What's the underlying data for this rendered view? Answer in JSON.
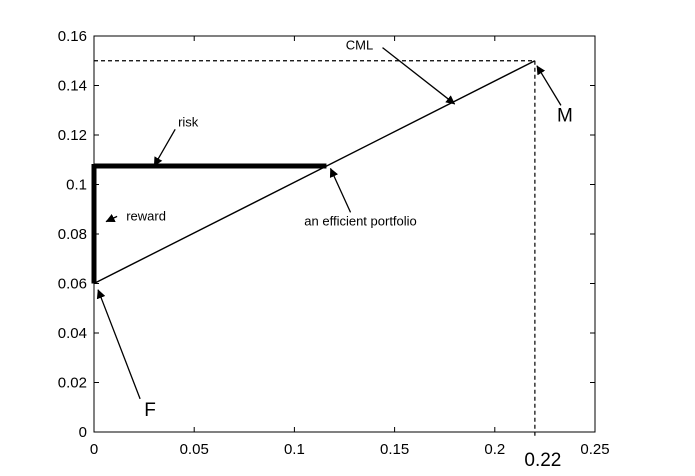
{
  "chart_data": {
    "type": "line",
    "title": "",
    "xlabel": "",
    "ylabel": "",
    "xlim": [
      0,
      0.25
    ],
    "ylim": [
      0,
      0.16
    ],
    "grid": false,
    "x_ticks": [
      {
        "value": 0,
        "label": "0"
      },
      {
        "value": 0.05,
        "label": "0.05"
      },
      {
        "value": 0.1,
        "label": "0.1"
      },
      {
        "value": 0.15,
        "label": "0.15"
      },
      {
        "value": 0.2,
        "label": "0.2"
      },
      {
        "value": 0.25,
        "label": "0.25"
      }
    ],
    "y_ticks": [
      {
        "value": 0,
        "label": "0"
      },
      {
        "value": 0.02,
        "label": "0.02"
      },
      {
        "value": 0.04,
        "label": "0.04"
      },
      {
        "value": 0.06,
        "label": "0.06"
      },
      {
        "value": 0.08,
        "label": "0.08"
      },
      {
        "value": 0.1,
        "label": "0.1"
      },
      {
        "value": 0.12,
        "label": "0.12"
      },
      {
        "value": 0.14,
        "label": "0.14"
      },
      {
        "value": 0.16,
        "label": "0.16"
      }
    ],
    "extra_x_tick": {
      "value": 0.22,
      "label": "0.22"
    },
    "cml": {
      "x": [
        0,
        0.22
      ],
      "y": [
        0.06,
        0.15
      ]
    },
    "efficient_portfolio": {
      "x": 0.116,
      "y": 0.1075
    },
    "risk_segment": {
      "x": [
        0,
        0.116
      ],
      "y": [
        0.1075,
        0.1075
      ]
    },
    "reward_segment": {
      "x": [
        0,
        0
      ],
      "y": [
        0.06,
        0.1075
      ]
    },
    "guide_lines": {
      "M_horizontal": {
        "x": [
          0,
          0.22
        ],
        "y": 0.15
      },
      "M_vertical": {
        "x": 0.22,
        "y": [
          0,
          0.15
        ]
      }
    },
    "annotations": [
      {
        "id": "cml",
        "text": "CML",
        "target": [
          0.18,
          0.1325
        ],
        "label_at": [
          0.1325,
          0.1545
        ],
        "size": "small"
      },
      {
        "id": "risk",
        "text": "risk",
        "target": [
          0.03,
          0.1075
        ],
        "label_at": [
          0.047,
          0.1235
        ],
        "size": "small"
      },
      {
        "id": "reward",
        "text": "reward",
        "target": [
          0.006,
          0.085
        ],
        "label_at": [
          0.026,
          0.0855
        ],
        "size": "small"
      },
      {
        "id": "efficient",
        "text": "an efficient portfolio",
        "target": [
          0.118,
          0.1065
        ],
        "label_at": [
          0.133,
          0.0835
        ],
        "size": "small"
      },
      {
        "id": "M",
        "text": "M",
        "target": [
          0.221,
          0.148
        ],
        "label_at": [
          0.235,
          0.1255
        ],
        "size": "large"
      },
      {
        "id": "F",
        "text": "F",
        "target": [
          0.002,
          0.0575
        ],
        "label_at": [
          0.028,
          0.0065
        ],
        "size": "large"
      }
    ]
  }
}
